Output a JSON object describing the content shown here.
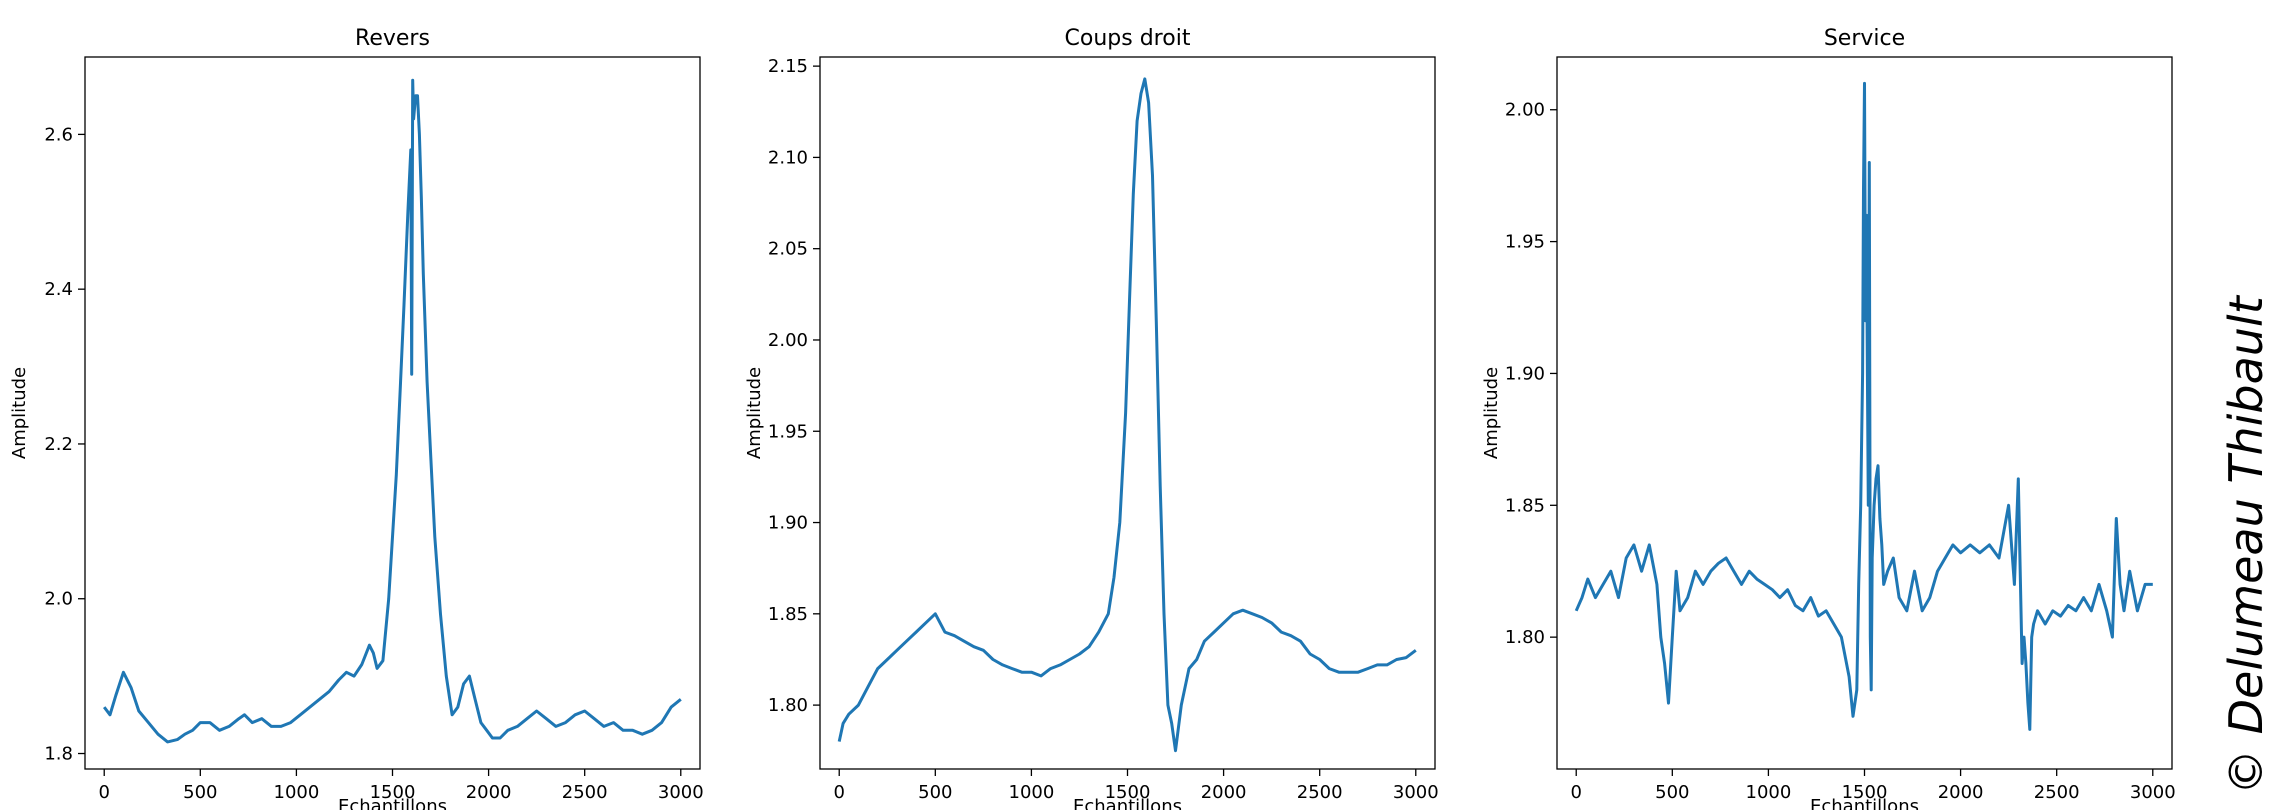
{
  "watermark": "© Delumeau Thibault",
  "chart_data": [
    {
      "type": "line",
      "title": "Revers",
      "xlabel": "Echantillons",
      "ylabel": "Amplitude",
      "xlim": [
        -100,
        3100
      ],
      "ylim": [
        1.78,
        2.7
      ],
      "xticks": [
        0,
        500,
        1000,
        1500,
        2000,
        2500,
        3000
      ],
      "xtick_labels": [
        "0",
        "500",
        "1000",
        "1500",
        "2000",
        "2500",
        "3000"
      ],
      "yticks": [
        1.8,
        2.0,
        2.2,
        2.4,
        2.6
      ],
      "ytick_labels": [
        "1.8",
        "2.0",
        "2.2",
        "2.4",
        "2.6"
      ],
      "line_color": "#1f77b4",
      "series": [
        {
          "x": [
            0,
            30,
            60,
            100,
            140,
            180,
            230,
            280,
            330,
            380,
            420,
            460,
            500,
            550,
            600,
            650,
            700,
            730,
            770,
            820,
            870,
            920,
            970,
            1020,
            1070,
            1120,
            1170,
            1220,
            1260,
            1300,
            1340,
            1380,
            1400,
            1420,
            1450,
            1480,
            1500,
            1520,
            1540,
            1560,
            1580,
            1595,
            1600,
            1605,
            1610,
            1620,
            1630,
            1640,
            1650,
            1660,
            1680,
            1700,
            1720,
            1750,
            1780,
            1810,
            1840,
            1870,
            1900,
            1930,
            1960,
            1990,
            2020,
            2060,
            2100,
            2150,
            2200,
            2250,
            2300,
            2350,
            2400,
            2450,
            2500,
            2550,
            2600,
            2650,
            2700,
            2750,
            2800,
            2850,
            2900,
            2950,
            3000
          ],
          "y": [
            1.86,
            1.85,
            1.875,
            1.905,
            1.885,
            1.855,
            1.84,
            1.825,
            1.815,
            1.818,
            1.825,
            1.83,
            1.84,
            1.84,
            1.83,
            1.835,
            1.845,
            1.85,
            1.84,
            1.845,
            1.835,
            1.835,
            1.84,
            1.85,
            1.86,
            1.87,
            1.88,
            1.895,
            1.905,
            1.9,
            1.915,
            1.94,
            1.93,
            1.91,
            1.92,
            2.0,
            2.08,
            2.16,
            2.27,
            2.38,
            2.5,
            2.58,
            2.29,
            2.67,
            2.62,
            2.65,
            2.65,
            2.6,
            2.52,
            2.42,
            2.28,
            2.18,
            2.08,
            1.98,
            1.9,
            1.85,
            1.86,
            1.89,
            1.9,
            1.87,
            1.84,
            1.83,
            1.82,
            1.82,
            1.83,
            1.835,
            1.845,
            1.855,
            1.845,
            1.835,
            1.84,
            1.85,
            1.855,
            1.845,
            1.835,
            1.84,
            1.83,
            1.83,
            1.825,
            1.83,
            1.84,
            1.86,
            1.87
          ]
        }
      ]
    },
    {
      "type": "line",
      "title": "Coups droit",
      "xlabel": "Echantillons",
      "ylabel": "Amplitude",
      "xlim": [
        -100,
        3100
      ],
      "ylim": [
        1.765,
        2.155
      ],
      "xticks": [
        0,
        500,
        1000,
        1500,
        2000,
        2500,
        3000
      ],
      "xtick_labels": [
        "0",
        "500",
        "1000",
        "1500",
        "2000",
        "2500",
        "3000"
      ],
      "yticks": [
        1.8,
        1.85,
        1.9,
        1.95,
        2.0,
        2.05,
        2.1,
        2.15
      ],
      "ytick_labels": [
        "1.80",
        "1.85",
        "1.90",
        "1.95",
        "2.00",
        "2.05",
        "2.10",
        "2.15"
      ],
      "line_color": "#1f77b4",
      "series": [
        {
          "x": [
            0,
            20,
            50,
            100,
            150,
            200,
            250,
            300,
            350,
            400,
            450,
            500,
            550,
            600,
            650,
            700,
            750,
            800,
            850,
            900,
            950,
            1000,
            1050,
            1100,
            1150,
            1200,
            1250,
            1300,
            1350,
            1400,
            1430,
            1460,
            1490,
            1510,
            1530,
            1550,
            1570,
            1590,
            1610,
            1630,
            1650,
            1670,
            1690,
            1710,
            1730,
            1750,
            1780,
            1820,
            1860,
            1900,
            1950,
            2000,
            2050,
            2100,
            2150,
            2200,
            2250,
            2300,
            2350,
            2400,
            2450,
            2500,
            2550,
            2600,
            2650,
            2700,
            2750,
            2800,
            2850,
            2900,
            2950,
            3000
          ],
          "y": [
            1.78,
            1.79,
            1.795,
            1.8,
            1.81,
            1.82,
            1.825,
            1.83,
            1.835,
            1.84,
            1.845,
            1.85,
            1.84,
            1.838,
            1.835,
            1.832,
            1.83,
            1.825,
            1.822,
            1.82,
            1.818,
            1.818,
            1.816,
            1.82,
            1.822,
            1.825,
            1.828,
            1.832,
            1.84,
            1.85,
            1.87,
            1.9,
            1.96,
            2.02,
            2.08,
            2.12,
            2.135,
            2.143,
            2.13,
            2.09,
            2.01,
            1.92,
            1.85,
            1.8,
            1.79,
            1.775,
            1.8,
            1.82,
            1.825,
            1.835,
            1.84,
            1.845,
            1.85,
            1.852,
            1.85,
            1.848,
            1.845,
            1.84,
            1.838,
            1.835,
            1.828,
            1.825,
            1.82,
            1.818,
            1.818,
            1.818,
            1.82,
            1.822,
            1.822,
            1.825,
            1.826,
            1.83
          ]
        }
      ]
    },
    {
      "type": "line",
      "title": "Service",
      "xlabel": "Echantillons",
      "ylabel": "Amplitude",
      "xlim": [
        -100,
        3100
      ],
      "ylim": [
        1.75,
        2.02
      ],
      "xticks": [
        0,
        500,
        1000,
        1500,
        2000,
        2500,
        3000
      ],
      "xtick_labels": [
        "0",
        "500",
        "1000",
        "1500",
        "2000",
        "2500",
        "3000"
      ],
      "yticks": [
        1.8,
        1.85,
        1.9,
        1.95,
        2.0
      ],
      "ytick_labels": [
        "1.80",
        "1.85",
        "1.90",
        "1.95",
        "2.00"
      ],
      "line_color": "#1f77b4",
      "series": [
        {
          "x": [
            0,
            30,
            60,
            100,
            140,
            180,
            220,
            260,
            300,
            340,
            380,
            420,
            440,
            460,
            480,
            500,
            520,
            540,
            580,
            620,
            660,
            700,
            740,
            780,
            820,
            860,
            900,
            940,
            980,
            1020,
            1060,
            1100,
            1140,
            1180,
            1220,
            1260,
            1300,
            1340,
            1380,
            1420,
            1440,
            1460,
            1470,
            1480,
            1490,
            1495,
            1500,
            1505,
            1510,
            1515,
            1520,
            1525,
            1530,
            1535,
            1540,
            1550,
            1560,
            1570,
            1580,
            1590,
            1600,
            1620,
            1650,
            1680,
            1720,
            1760,
            1800,
            1840,
            1880,
            1920,
            1960,
            2000,
            2050,
            2100,
            2150,
            2200,
            2250,
            2280,
            2300,
            2320,
            2330,
            2340,
            2350,
            2360,
            2370,
            2380,
            2400,
            2440,
            2480,
            2520,
            2560,
            2600,
            2640,
            2680,
            2720,
            2760,
            2790,
            2810,
            2830,
            2850,
            2880,
            2920,
            2960,
            3000
          ],
          "y": [
            1.81,
            1.815,
            1.822,
            1.815,
            1.82,
            1.825,
            1.815,
            1.83,
            1.835,
            1.825,
            1.835,
            1.82,
            1.8,
            1.79,
            1.775,
            1.8,
            1.825,
            1.81,
            1.815,
            1.825,
            1.82,
            1.825,
            1.828,
            1.83,
            1.825,
            1.82,
            1.825,
            1.822,
            1.82,
            1.818,
            1.815,
            1.818,
            1.812,
            1.81,
            1.815,
            1.808,
            1.81,
            1.805,
            1.8,
            1.785,
            1.77,
            1.78,
            1.82,
            1.85,
            1.9,
            1.97,
            2.01,
            1.92,
            1.96,
            1.9,
            1.85,
            1.98,
            1.8,
            1.78,
            1.83,
            1.85,
            1.86,
            1.865,
            1.845,
            1.835,
            1.82,
            1.825,
            1.83,
            1.815,
            1.81,
            1.825,
            1.81,
            1.815,
            1.825,
            1.83,
            1.835,
            1.832,
            1.835,
            1.832,
            1.835,
            1.83,
            1.85,
            1.82,
            1.86,
            1.79,
            1.8,
            1.79,
            1.775,
            1.765,
            1.8,
            1.805,
            1.81,
            1.805,
            1.81,
            1.808,
            1.812,
            1.81,
            1.815,
            1.81,
            1.82,
            1.81,
            1.8,
            1.845,
            1.82,
            1.81,
            1.825,
            1.81,
            1.82,
            1.82
          ]
        }
      ]
    }
  ]
}
